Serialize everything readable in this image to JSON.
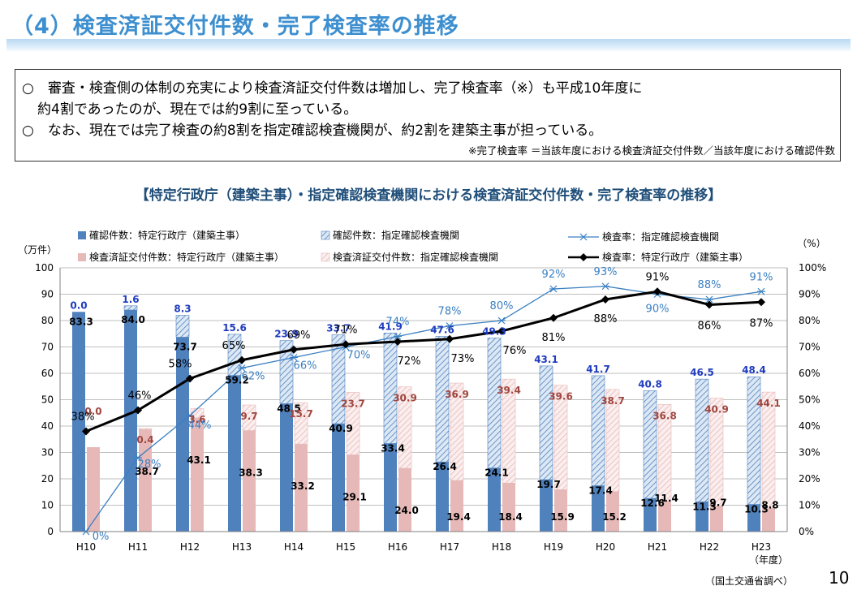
{
  "page": {
    "title": "（4）検査済証交付件数・完了検査率の推移",
    "box_line1": "○　審査・検査側の体制の充実により検査済証交付件数は増加し、完了検査率（※）も平成10年度に",
    "box_line2": "約4割であったのが、現在では約9割に至っている。",
    "box_line3": "○　なお、現在では完了検査の約8割を指定確認検査機関が、約2割を建築主事が担っている。",
    "box_note": "※完了検査率 ＝当該年度における検査済証交付件数／当該年度における確認件数",
    "source": "（国土交通省調べ）",
    "page_number": "10"
  },
  "chart_data": {
    "type": "bar",
    "title": "【特定行政庁（建築主事）・指定確認検査機関における検査済証交付件数・完了検査率の推移】",
    "categories": [
      "H10",
      "H11",
      "H12",
      "H13",
      "H14",
      "H15",
      "H16",
      "H17",
      "H18",
      "H19",
      "H20",
      "H21",
      "H22",
      "H23"
    ],
    "xlabel": "（年度）",
    "ylabel_left": "（万件）",
    "ylabel_right": "（%）",
    "ylim_left": [
      0,
      100
    ],
    "ylim_right": [
      0,
      100
    ],
    "yticks_left": [
      "0",
      "10",
      "20",
      "30",
      "40",
      "50",
      "60",
      "70",
      "80",
      "90",
      "100"
    ],
    "yticks_right": [
      "0%",
      "10%",
      "20%",
      "30%",
      "40%",
      "50%",
      "60%",
      "70%",
      "80%",
      "90%",
      "100%"
    ],
    "legend": {
      "confirm_gov": "確認件数：特定行政庁（建築主事）",
      "confirm_priv": "確認件数：指定確認検査機関",
      "rate_priv": "検査率：指定確認検査機関",
      "issued_gov": "検査済証交付件数：特定行政庁（建築主事）",
      "issued_priv": "検査済証交付件数：指定確認検査機関",
      "rate_gov": "検査率：特定行政庁（建築主事）"
    },
    "series": [
      {
        "name": "確認件数：特定行政庁（建築主事）",
        "color": "#4f81bd",
        "values": [
          83.3,
          84.0,
          73.7,
          59.2,
          48.5,
          40.9,
          33.4,
          26.4,
          24.1,
          19.7,
          17.4,
          12.6,
          11.3,
          10.3
        ],
        "labels": [
          "83.3",
          "84.0",
          "73.7",
          "59.2",
          "48.5",
          "40.9",
          "33.4",
          "26.4",
          "24.1",
          "19.7",
          "17.4",
          "12.6",
          "11.3",
          "10.3"
        ]
      },
      {
        "name": "確認件数：指定確認検査機関",
        "color": "#4f81bd",
        "values": [
          0.0,
          1.6,
          8.3,
          15.6,
          23.9,
          33.7,
          41.9,
          47.6,
          49.3,
          43.1,
          41.7,
          40.8,
          46.5,
          48.4
        ],
        "labels": [
          "0.0",
          "1.6",
          "8.3",
          "15.6",
          "23.9",
          "33.7",
          "41.9",
          "47.6",
          "49.3",
          "43.1",
          "41.7",
          "40.8",
          "46.5",
          "48.4"
        ]
      },
      {
        "name": "検査済証交付件数：特定行政庁（建築主事）",
        "color": "#e6b9b8",
        "values": [
          32.0,
          38.7,
          43.1,
          38.3,
          33.2,
          29.1,
          24.0,
          19.4,
          18.4,
          15.9,
          15.2,
          11.4,
          9.7,
          8.8
        ],
        "labels": [
          "",
          "38.7",
          "43.1",
          "38.3",
          "33.2",
          "29.1",
          "24.0",
          "19.4",
          "18.4",
          "15.9",
          "15.2",
          "11.4",
          "9.7",
          "8.8"
        ]
      },
      {
        "name": "検査済証交付件数：指定確認検査機関",
        "color": "#e6b9b8",
        "values": [
          0.0,
          0.4,
          3.6,
          9.7,
          15.7,
          23.7,
          30.9,
          36.9,
          39.4,
          39.6,
          38.7,
          36.8,
          40.9,
          44.1
        ],
        "labels": [
          "0.0",
          "0.4",
          "3.6",
          "9.7",
          "15.7",
          "23.7",
          "30.9",
          "36.9",
          "39.4",
          "39.6",
          "38.7",
          "36.8",
          "40.9",
          "44.1"
        ]
      },
      {
        "name": "検査率：指定確認検査機関",
        "color": "#3a7fc1",
        "values": [
          0,
          28,
          44,
          62,
          66,
          70,
          74,
          78,
          80,
          92,
          93,
          90,
          88,
          91
        ],
        "labels": [
          "0%",
          "28%",
          "44%",
          "62%",
          "66%",
          "70%",
          "74%",
          "78%",
          "80%",
          "92%",
          "93%",
          "90%",
          "88%",
          "91%"
        ]
      },
      {
        "name": "検査率：特定行政庁（建築主事）",
        "color": "#000000",
        "values": [
          38,
          46,
          58,
          65,
          69,
          71,
          72,
          73,
          76,
          81,
          88,
          91,
          86,
          87
        ],
        "labels": [
          "38%",
          "46%",
          "58%",
          "65%",
          "69%",
          "71%",
          "72%",
          "73%",
          "76%",
          "81%",
          "88%",
          "91%",
          "86%",
          "87%"
        ]
      }
    ]
  }
}
